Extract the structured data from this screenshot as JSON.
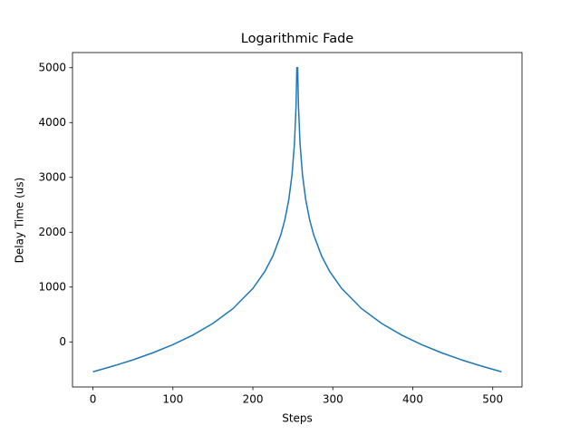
{
  "chart_data": {
    "type": "line",
    "title": "Logarithmic Fade",
    "x_label": "Steps",
    "y_label": "Delay Time (us)",
    "series": [
      {
        "name": "delay",
        "color": "#1f77b4",
        "x": [
          0,
          25,
          50,
          75,
          100,
          125,
          150,
          175,
          200,
          215,
          225,
          235,
          240,
          245,
          249,
          252,
          254,
          255,
          256,
          257,
          259,
          262,
          266,
          271,
          276,
          286,
          296,
          311,
          336,
          361,
          386,
          411,
          436,
          461,
          486,
          511
        ],
        "values": [
          -545,
          -442,
          -328,
          -198,
          -50,
          125,
          337,
          606,
          975,
          1286,
          1566,
          1955,
          2227,
          2602,
          3054,
          3614,
          4307,
          5000,
          5000,
          4307,
          3614,
          3054,
          2602,
          2227,
          1955,
          1566,
          1286,
          975,
          606,
          337,
          125,
          -50,
          -198,
          -328,
          -442,
          -545
        ]
      }
    ],
    "xlim": [
      -25.55,
      536.55
    ],
    "ylim": [
      -822,
      5277
    ],
    "xticks": [
      0,
      100,
      200,
      300,
      400,
      500
    ],
    "yticks": [
      0,
      1000,
      2000,
      3000,
      4000,
      5000
    ],
    "grid": false,
    "legend": false
  }
}
